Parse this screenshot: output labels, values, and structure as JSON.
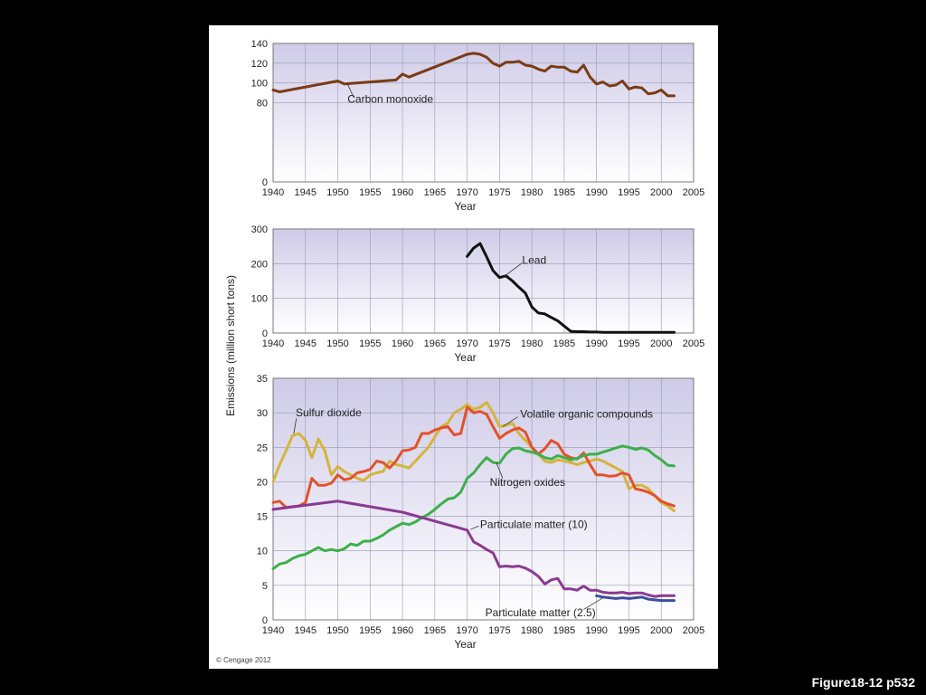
{
  "caption": "Figure18-12 p532",
  "credit": "© Cengage 2012",
  "ylabel": "Emissions (million short tons)",
  "chart_data": [
    {
      "type": "line",
      "id": "co",
      "xlabel": "Year",
      "xlim": [
        1940,
        2005
      ],
      "ylim": [
        0,
        140
      ],
      "yticks": [
        0,
        80,
        100,
        120,
        140
      ],
      "xticks": [
        1940,
        1945,
        1950,
        1955,
        1960,
        1965,
        1970,
        1975,
        1980,
        1985,
        1990,
        1995,
        2000,
        2005
      ],
      "series": [
        {
          "name": "Carbon monoxide",
          "color": "#7a3b15",
          "x": [
            1940,
            1941,
            1950,
            1951,
            1959,
            1960,
            1961,
            1970,
            1971,
            1972,
            1973,
            1974,
            1975,
            1976,
            1977,
            1978,
            1979,
            1980,
            1981,
            1982,
            1983,
            1984,
            1985,
            1986,
            1987,
            1988,
            1989,
            1990,
            1991,
            1992,
            1993,
            1994,
            1995,
            1996,
            1997,
            1998,
            1999,
            2000,
            2001,
            2002
          ],
          "y": [
            93,
            91,
            102,
            99,
            103,
            109,
            106,
            129,
            130,
            129,
            126,
            120,
            117,
            121,
            121,
            122,
            118,
            117,
            114,
            112,
            117,
            116,
            116,
            112,
            111,
            118,
            106,
            99,
            101,
            97,
            98,
            102,
            94,
            96,
            95,
            89,
            90,
            93,
            87,
            87
          ]
        }
      ]
    },
    {
      "type": "line",
      "id": "lead",
      "xlabel": "Year",
      "xlim": [
        1940,
        2005
      ],
      "ylim": [
        0,
        300
      ],
      "yticks": [
        0,
        100,
        200,
        300
      ],
      "xticks": [
        1940,
        1945,
        1950,
        1955,
        1960,
        1965,
        1970,
        1975,
        1980,
        1985,
        1990,
        1995,
        2000,
        2005
      ],
      "series": [
        {
          "name": "Lead",
          "color": "#111111",
          "x": [
            1970,
            1971,
            1972,
            1973,
            1974,
            1975,
            1976,
            1977,
            1978,
            1979,
            1980,
            1981,
            1982,
            1983,
            1984,
            1985,
            1986,
            1987,
            1988,
            1989,
            1990,
            1991,
            1992,
            1993,
            1994,
            1995,
            1996,
            1997,
            1998,
            1999,
            2000,
            2001,
            2002
          ],
          "y": [
            221,
            245,
            258,
            220,
            180,
            160,
            165,
            150,
            132,
            115,
            75,
            58,
            55,
            45,
            35,
            20,
            5,
            4,
            4,
            3,
            3,
            2,
            2,
            2,
            2,
            2,
            2,
            2,
            2,
            2,
            2,
            2,
            2
          ]
        }
      ]
    },
    {
      "type": "line",
      "id": "others",
      "xlabel": "Year",
      "xlim": [
        1940,
        2005
      ],
      "ylim": [
        0,
        35
      ],
      "yticks": [
        0,
        5,
        10,
        15,
        20,
        25,
        30,
        35
      ],
      "xticks": [
        1940,
        1945,
        1950,
        1955,
        1960,
        1965,
        1970,
        1975,
        1980,
        1985,
        1990,
        1995,
        2000,
        2005
      ],
      "series": [
        {
          "name": "Sulfur dioxide",
          "color": "#d4b43c",
          "x": [
            1940,
            1941,
            1942,
            1943,
            1944,
            1945,
            1946,
            1947,
            1948,
            1949,
            1950,
            1951,
            1952,
            1953,
            1954,
            1955,
            1956,
            1957,
            1958,
            1959,
            1960,
            1961,
            1962,
            1963,
            1964,
            1965,
            1966,
            1967,
            1968,
            1969,
            1970,
            1971,
            1972,
            1973,
            1974,
            1975,
            1976,
            1977,
            1978,
            1979,
            1980,
            1981,
            1982,
            1983,
            1984,
            1985,
            1986,
            1987,
            1988,
            1989,
            1990,
            1991,
            1992,
            1993,
            1994,
            1995,
            1996,
            1997,
            1998,
            1999,
            2000,
            2001,
            2002
          ],
          "y": [
            20,
            22.5,
            24.5,
            26.7,
            27,
            26,
            23.5,
            26.2,
            24.5,
            21,
            22.2,
            21.5,
            21,
            20.5,
            20.2,
            21,
            21.3,
            21.5,
            23,
            22.5,
            22.3,
            22,
            23,
            24,
            25,
            26.5,
            28,
            28.5,
            30,
            30.5,
            31.2,
            30.5,
            30.8,
            31.5,
            30,
            28,
            28.2,
            28.5,
            27,
            26,
            25,
            24,
            23,
            22.8,
            23.2,
            23,
            22.8,
            22.5,
            22.8,
            23,
            23.3,
            23,
            22.5,
            22,
            21.5,
            19,
            19.5,
            19.5,
            19,
            18,
            17,
            16.5,
            15.8
          ]
        },
        {
          "name": "Volatile organic compounds",
          "color": "#e2522a",
          "x": [
            1940,
            1941,
            1942,
            1943,
            1944,
            1945,
            1946,
            1947,
            1948,
            1949,
            1950,
            1951,
            1952,
            1953,
            1954,
            1955,
            1956,
            1957,
            1958,
            1959,
            1960,
            1961,
            1962,
            1963,
            1964,
            1965,
            1966,
            1967,
            1968,
            1969,
            1970,
            1971,
            1972,
            1973,
            1974,
            1975,
            1976,
            1977,
            1978,
            1979,
            1980,
            1981,
            1982,
            1983,
            1984,
            1985,
            1986,
            1987,
            1988,
            1989,
            1990,
            1991,
            1992,
            1993,
            1994,
            1995,
            1996,
            1997,
            1998,
            1999,
            2000,
            2001,
            2002
          ],
          "y": [
            17,
            17.2,
            16.3,
            16.4,
            16.5,
            17,
            20.5,
            19.5,
            19.5,
            19.8,
            21,
            20.3,
            20.5,
            21.3,
            21.5,
            21.8,
            23,
            22.8,
            22,
            23,
            24.5,
            24.6,
            25,
            27,
            27,
            27.5,
            27.8,
            28,
            26.8,
            27,
            30.8,
            30,
            30.2,
            29.8,
            28,
            26.3,
            27,
            27.5,
            27.8,
            27.2,
            25,
            24,
            24.8,
            26,
            25.5,
            24,
            23.5,
            23.3,
            24.2,
            22.5,
            21,
            21,
            20.8,
            20.9,
            21.3,
            21,
            19,
            18.8,
            18.5,
            18,
            17.2,
            16.8,
            16.5
          ]
        },
        {
          "name": "Nitrogen oxides",
          "color": "#3cb04a",
          "x": [
            1940,
            1941,
            1942,
            1943,
            1944,
            1945,
            1946,
            1947,
            1948,
            1949,
            1950,
            1951,
            1952,
            1953,
            1954,
            1955,
            1956,
            1957,
            1958,
            1959,
            1960,
            1961,
            1962,
            1963,
            1964,
            1965,
            1966,
            1967,
            1968,
            1969,
            1970,
            1971,
            1972,
            1973,
            1974,
            1975,
            1976,
            1977,
            1978,
            1979,
            1980,
            1981,
            1982,
            1983,
            1984,
            1985,
            1986,
            1987,
            1988,
            1989,
            1990,
            1991,
            1992,
            1993,
            1994,
            1995,
            1996,
            1997,
            1998,
            1999,
            2000,
            2001,
            2002
          ],
          "y": [
            7.4,
            8.1,
            8.3,
            8.9,
            9.3,
            9.5,
            10,
            10.5,
            10,
            10.2,
            10,
            10.3,
            11,
            10.8,
            11.4,
            11.4,
            11.8,
            12.3,
            13,
            13.5,
            14,
            13.8,
            14.2,
            14.8,
            15.3,
            16,
            16.8,
            17.5,
            17.7,
            18.5,
            20.5,
            21.3,
            22.5,
            23.5,
            22.8,
            22.7,
            24,
            24.8,
            24.9,
            24.5,
            24.3,
            24,
            23.5,
            23.3,
            23.8,
            23.5,
            23.2,
            23.4,
            23.8,
            24,
            24,
            24.3,
            24.6,
            24.9,
            25.2,
            25,
            24.7,
            24.9,
            24.6,
            23.8,
            23.2,
            22.4,
            22.3
          ]
        },
        {
          "name": "Particulate matter (10)",
          "color": "#8a3a92",
          "x": [
            1940,
            1950,
            1960,
            1970,
            1971,
            1972,
            1973,
            1974,
            1975,
            1976,
            1977,
            1978,
            1979,
            1980,
            1981,
            1982,
            1983,
            1984,
            1985,
            1986,
            1987,
            1988,
            1989,
            1990,
            1991,
            1992,
            1993,
            1994,
            1995,
            1996,
            1997,
            1998,
            1999,
            2000,
            2001,
            2002
          ],
          "y": [
            16,
            17.2,
            15.6,
            13,
            11.3,
            10.8,
            10.2,
            9.7,
            7.7,
            7.8,
            7.7,
            7.8,
            7.5,
            7,
            6.3,
            5.2,
            5.8,
            6,
            4.5,
            4.5,
            4.3,
            4.9,
            4.3,
            4.3,
            4,
            3.9,
            3.9,
            4,
            3.8,
            3.9,
            3.9,
            3.6,
            3.4,
            3.5,
            3.5,
            3.5
          ]
        },
        {
          "name": "Particulate matter (2.5)",
          "color": "#3b4ea0",
          "x": [
            1990,
            1991,
            1992,
            1993,
            1994,
            1995,
            1996,
            1997,
            1998,
            1999,
            2000,
            2001,
            2002
          ],
          "y": [
            3.5,
            3.3,
            3.2,
            3.1,
            3.2,
            3.1,
            3.2,
            3.3,
            3,
            2.9,
            2.8,
            2.8,
            2.8
          ]
        }
      ]
    }
  ]
}
